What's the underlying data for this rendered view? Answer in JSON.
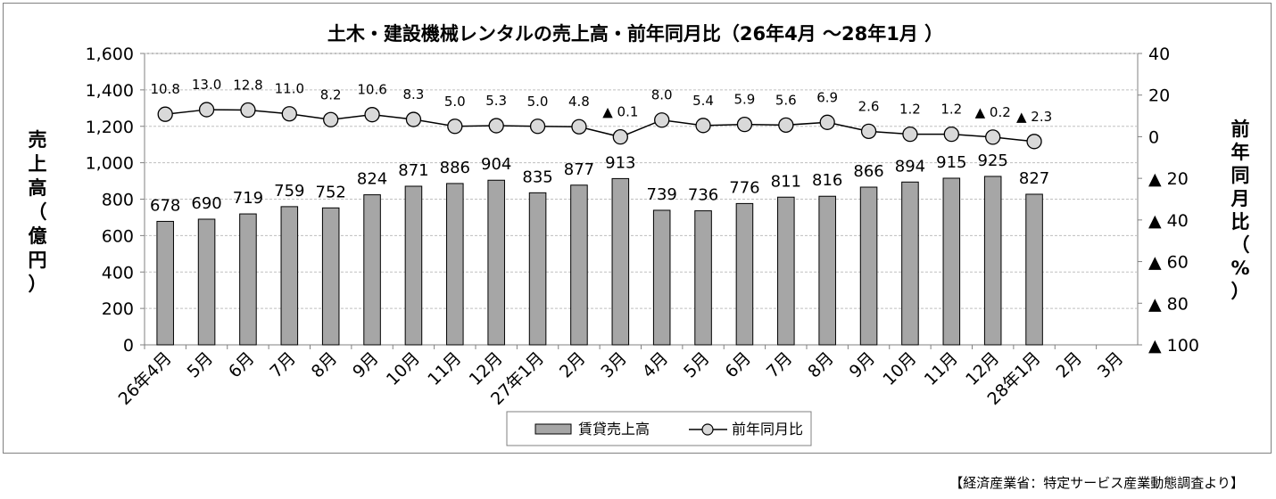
{
  "source": "【経済産業省：特定サービス産業動態調査より】",
  "chart_data": {
    "type": "bar",
    "title": "土木・建設機械レンタルの売上高・前年同月比（26年4月 ～28年1月 ）",
    "categories": [
      "26年4月",
      "5月",
      "6月",
      "7月",
      "8月",
      "9月",
      "10月",
      "11月",
      "12月",
      "27年1月",
      "2月",
      "3月",
      "4月",
      "5月",
      "6月",
      "7月",
      "8月",
      "9月",
      "10月",
      "11月",
      "12月",
      "28年1月",
      "2月",
      "3月"
    ],
    "series": [
      {
        "name": "賃貸売上高",
        "type": "bar",
        "axis": "left",
        "values": [
          678,
          690,
          719,
          759,
          752,
          824,
          871,
          886,
          904,
          835,
          877,
          913,
          739,
          736,
          776,
          811,
          816,
          866,
          894,
          915,
          925,
          827,
          null,
          null
        ],
        "labels": [
          "678",
          "690",
          "719",
          "759",
          "752",
          "824",
          "871",
          "886",
          "904",
          "835",
          "877",
          "913",
          "739",
          "736",
          "776",
          "811",
          "816",
          "866",
          "894",
          "915",
          "925",
          "827",
          "",
          ""
        ],
        "color": "#a6a6a6"
      },
      {
        "name": "前年同月比",
        "type": "line",
        "axis": "right",
        "values": [
          10.8,
          13.0,
          12.8,
          11.0,
          8.2,
          10.6,
          8.3,
          5.0,
          5.3,
          5.0,
          4.8,
          -0.1,
          8.0,
          5.4,
          5.9,
          5.6,
          6.9,
          2.6,
          1.2,
          1.2,
          -0.2,
          -2.3,
          null,
          null
        ],
        "labels": [
          "10.8",
          "13.0",
          "12.8",
          "11.0",
          "8.2",
          "10.6",
          "8.3",
          "5.0",
          "5.3",
          "5.0",
          "4.8",
          "▲ 0.1",
          "8.0",
          "5.4",
          "5.9",
          "5.6",
          "6.9",
          "2.6",
          "1.2",
          "1.2",
          "▲ 0.2",
          "▲ 2.3",
          "",
          ""
        ],
        "color": "#000000",
        "marker_fill": "#d9d9d9"
      }
    ],
    "y_left": {
      "label": "売上高（億円）",
      "label_chars": [
        "売",
        "上",
        "高",
        "（",
        "億",
        "円",
        "）"
      ],
      "ylim": [
        0,
        1600
      ],
      "ticks": [
        0,
        200,
        400,
        600,
        800,
        1000,
        1200,
        1400,
        1600
      ],
      "tick_labels": [
        "0",
        "200",
        "400",
        "600",
        "800",
        "1,000",
        "1,200",
        "1,400",
        "1,600"
      ]
    },
    "y_right": {
      "label": "前年同月比（%）",
      "label_chars": [
        "前",
        "年",
        "同",
        "月",
        "比",
        "（",
        "%",
        "）"
      ],
      "ylim": [
        -100,
        40
      ],
      "ticks": [
        40,
        20,
        0,
        -20,
        -40,
        -60,
        -80,
        -100
      ],
      "tick_labels": [
        "40",
        "20",
        "0",
        "▲ 20",
        "▲ 40",
        "▲ 60",
        "▲ 80",
        "▲ 100"
      ]
    },
    "grid": true,
    "legend": "bottom-center"
  }
}
